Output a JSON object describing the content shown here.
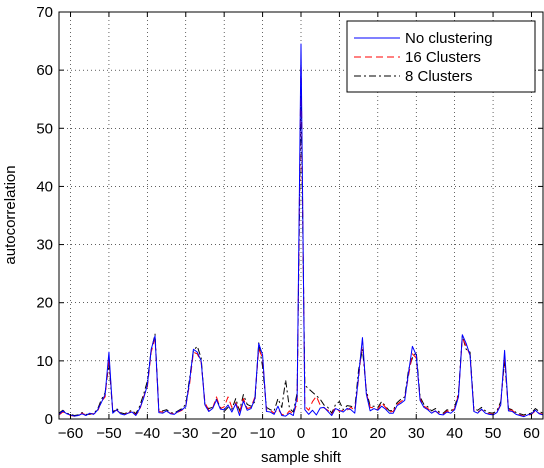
{
  "chart_data": {
    "type": "line",
    "title": "",
    "xlabel": "sample shift",
    "ylabel": "autocorrelation",
    "xlim": [
      -63,
      63
    ],
    "ylim": [
      0,
      70
    ],
    "xticks": [
      -60,
      -50,
      -40,
      -30,
      -20,
      -10,
      0,
      10,
      20,
      30,
      40,
      50,
      60
    ],
    "yticks": [
      0,
      10,
      20,
      30,
      40,
      50,
      60,
      70
    ],
    "grid": true,
    "legend_position": "top-right",
    "x": [
      -63,
      -62,
      -61,
      -60,
      -59,
      -58,
      -57,
      -56,
      -55,
      -54,
      -53,
      -52,
      -51,
      -50,
      -49,
      -48,
      -47,
      -46,
      -45,
      -44,
      -43,
      -42,
      -41,
      -40,
      -39,
      -38,
      -37,
      -36,
      -35,
      -34,
      -33,
      -32,
      -31,
      -30,
      -29,
      -28,
      -27,
      -26,
      -25,
      -24,
      -23,
      -22,
      -21,
      -20,
      -19,
      -18,
      -17,
      -16,
      -15,
      -14,
      -13,
      -12,
      -11,
      -10,
      -9,
      -8,
      -7,
      -6,
      -5,
      -4,
      -3,
      -2,
      -1,
      0,
      1,
      2,
      3,
      4,
      5,
      6,
      7,
      8,
      9,
      10,
      11,
      12,
      13,
      14,
      15,
      16,
      17,
      18,
      19,
      20,
      21,
      22,
      23,
      24,
      25,
      26,
      27,
      28,
      29,
      30,
      31,
      32,
      33,
      34,
      35,
      36,
      37,
      38,
      39,
      40,
      41,
      42,
      43,
      44,
      45,
      46,
      47,
      48,
      49,
      50,
      51,
      52,
      53,
      54,
      55,
      56,
      57,
      58,
      59,
      60,
      61,
      62,
      63
    ],
    "series": [
      {
        "name": "No clustering",
        "color": "#0000ff",
        "dash": "solid",
        "values": [
          0.8,
          1.4,
          0.9,
          0.7,
          0.5,
          0.6,
          0.9,
          0.6,
          1.0,
          0.8,
          1.5,
          2.8,
          4.2,
          11.5,
          1.0,
          1.6,
          0.9,
          0.7,
          1.0,
          1.2,
          0.6,
          1.8,
          3.5,
          5.8,
          12.0,
          14.3,
          1.1,
          1.0,
          1.4,
          0.9,
          0.8,
          1.3,
          1.6,
          2.1,
          6.5,
          12.0,
          11.5,
          10.0,
          2.4,
          1.3,
          1.8,
          3.3,
          1.7,
          1.6,
          2.4,
          1.2,
          2.6,
          0.6,
          3.1,
          1.5,
          1.8,
          3.5,
          13.0,
          11.0,
          1.3,
          1.2,
          0.8,
          2.2,
          0.6,
          0.5,
          1.0,
          0.6,
          3.9,
          64.5,
          1.6,
          0.8,
          1.5,
          0.7,
          1.9,
          2.0,
          1.3,
          0.6,
          1.8,
          1.5,
          1.2,
          1.8,
          1.6,
          1.0,
          7.5,
          14.0,
          4.3,
          1.4,
          1.8,
          1.5,
          2.2,
          1.7,
          1.0,
          1.0,
          2.3,
          2.7,
          3.2,
          8.0,
          12.5,
          11.0,
          3.2,
          2.0,
          1.6,
          1.0,
          1.4,
          0.8,
          0.7,
          1.2,
          1.0,
          1.6,
          3.8,
          14.5,
          13.0,
          11.0,
          1.3,
          1.0,
          1.7,
          1.0,
          0.8,
          0.7,
          1.1,
          2.4,
          11.8,
          1.4,
          1.3,
          0.8,
          0.6,
          0.4,
          0.7,
          0.9,
          1.5,
          0.9,
          0.7
        ]
      },
      {
        "name": "16 Clusters",
        "color": "#ff0000",
        "dash": "dashed",
        "values": [
          0.7,
          1.2,
          1.0,
          0.6,
          0.5,
          0.5,
          1.0,
          0.7,
          0.9,
          0.9,
          1.2,
          3.0,
          3.8,
          10.5,
          1.3,
          1.5,
          1.0,
          0.8,
          1.0,
          1.4,
          0.7,
          1.5,
          3.8,
          5.5,
          11.5,
          13.9,
          1.3,
          1.2,
          1.3,
          1.0,
          0.9,
          1.2,
          1.5,
          2.2,
          6.0,
          11.5,
          11.2,
          9.8,
          2.8,
          1.5,
          1.9,
          3.8,
          1.8,
          2.1,
          3.8,
          2.0,
          2.8,
          1.2,
          3.5,
          1.8,
          2.0,
          3.8,
          12.0,
          10.5,
          1.6,
          1.5,
          1.0,
          1.7,
          0.8,
          0.6,
          1.4,
          0.8,
          2.8,
          62.0,
          2.2,
          1.5,
          3.0,
          3.9,
          2.4,
          1.9,
          1.5,
          0.8,
          2.0,
          1.3,
          1.5,
          1.5,
          2.0,
          1.5,
          7.0,
          13.5,
          4.5,
          2.0,
          1.9,
          1.6,
          2.8,
          2.0,
          1.2,
          1.3,
          2.5,
          3.0,
          3.5,
          7.5,
          11.2,
          10.5,
          3.5,
          2.2,
          1.8,
          1.2,
          1.3,
          1.0,
          0.8,
          1.4,
          1.2,
          1.8,
          4.2,
          14.0,
          12.5,
          11.0,
          1.5,
          1.2,
          1.6,
          1.2,
          0.9,
          0.8,
          1.2,
          2.6,
          10.8,
          1.6,
          1.5,
          0.9,
          0.7,
          0.5,
          0.6,
          0.8,
          1.4,
          1.0,
          0.8
        ]
      },
      {
        "name": "8 Clusters",
        "color": "#000000",
        "dash": "dashdot",
        "values": [
          1.0,
          1.5,
          1.0,
          0.8,
          0.6,
          0.7,
          1.1,
          0.8,
          0.8,
          1.0,
          1.6,
          3.3,
          4.5,
          9.5,
          1.2,
          1.8,
          1.1,
          0.9,
          1.2,
          1.5,
          0.9,
          2.2,
          4.2,
          6.5,
          11.8,
          14.6,
          1.5,
          1.4,
          1.6,
          1.1,
          1.0,
          1.4,
          1.8,
          2.5,
          7.0,
          11.8,
          12.5,
          10.5,
          2.2,
          1.8,
          2.0,
          3.4,
          2.0,
          1.3,
          2.0,
          1.7,
          3.5,
          1.4,
          4.2,
          2.5,
          2.2,
          3.0,
          13.1,
          9.0,
          2.0,
          1.6,
          1.4,
          3.5,
          2.0,
          6.7,
          1.8,
          1.2,
          4.5,
          55.5,
          5.8,
          5.2,
          4.6,
          4.0,
          3.4,
          2.4,
          2.0,
          1.0,
          2.5,
          3.0,
          1.6,
          2.3,
          2.2,
          1.8,
          8.5,
          12.0,
          5.0,
          2.2,
          2.2,
          2.0,
          3.0,
          2.2,
          1.4,
          1.5,
          2.8,
          3.4,
          3.8,
          8.5,
          10.5,
          11.5,
          3.8,
          2.5,
          2.1,
          1.4,
          1.8,
          1.2,
          1.0,
          1.6,
          1.4,
          2.0,
          4.5,
          14.3,
          12.0,
          11.5,
          1.8,
          1.5,
          2.0,
          1.4,
          1.1,
          1.0,
          1.4,
          3.0,
          10.0,
          1.8,
          1.6,
          1.1,
          0.9,
          0.7,
          0.9,
          1.0,
          1.8,
          1.3,
          1.0
        ]
      }
    ]
  }
}
